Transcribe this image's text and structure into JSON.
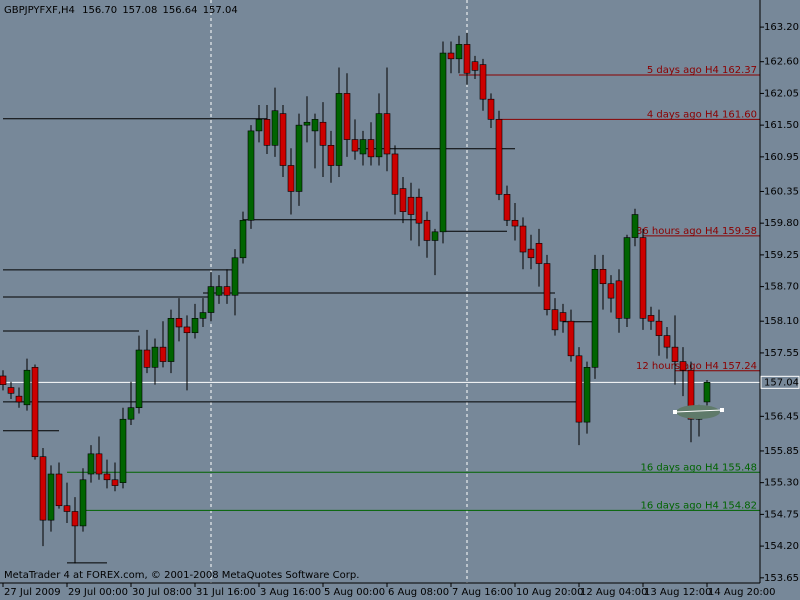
{
  "chart_data": {
    "type": "candlestick",
    "title": "GBPJPYFXF,H4",
    "header_values": [
      "156.70",
      "157.08",
      "156.64",
      "157.04"
    ],
    "footer": "MetaTrader 4 at FOREX.com, © 2001-2008 MetaQuotes Software Corp.",
    "background": "#778899",
    "up_color": "#006400",
    "down_color": "#cc0000",
    "categories": [
      "27 Jul 2009",
      null,
      null,
      null,
      null,
      null,
      null,
      null,
      "29 Jul 00:00",
      null,
      null,
      null,
      null,
      null,
      null,
      null,
      "30 Jul 08:00",
      null,
      null,
      null,
      null,
      null,
      null,
      null,
      "31 Jul 16:00",
      null,
      null,
      null,
      null,
      null,
      null,
      null,
      "3 Aug 16:00",
      null,
      null,
      null,
      null,
      null,
      null,
      null,
      "5 Aug 00:00",
      null,
      null,
      null,
      null,
      null,
      null,
      null,
      "6 Aug 08:00",
      null,
      null,
      null,
      null,
      null,
      null,
      null,
      "7 Aug 16:00",
      null,
      null,
      null,
      null,
      null,
      null,
      null,
      "10 Aug 20:00",
      null,
      null,
      null,
      null,
      null,
      null,
      null,
      "12 Aug 04:00",
      null,
      null,
      null,
      null,
      null,
      null,
      null,
      "13 Aug 12:00",
      null,
      null,
      null,
      null,
      null,
      null,
      null,
      "14 Aug 20:00"
    ],
    "open": [
      157.15,
      156.95,
      156.8,
      156.65,
      157.3,
      155.75,
      154.65,
      155.45,
      154.9,
      154.8,
      154.55,
      155.45,
      155.8,
      155.45,
      155.35,
      155.3,
      156.4,
      156.6,
      157.6,
      157.3,
      157.65,
      157.4,
      158.15,
      158.0,
      157.9,
      158.15,
      158.25,
      158.55,
      158.7,
      158.55,
      159.2,
      159.85,
      161.4,
      161.6,
      161.15,
      161.7,
      160.8,
      160.35,
      161.5,
      161.4,
      161.55,
      161.15,
      160.8,
      162.05,
      161.25,
      161.0,
      161.25,
      160.95,
      161.7,
      161.0,
      160.4,
      160.25,
      160.25,
      159.85,
      159.5,
      159.65,
      162.75,
      162.65,
      162.9,
      162.6,
      162.55,
      161.95,
      161.6,
      160.3,
      159.85,
      159.75,
      159.35,
      159.45,
      159.1,
      158.3,
      158.25,
      158.1,
      157.5,
      156.35,
      157.3,
      159.0,
      158.75,
      158.8,
      158.15,
      159.55,
      159.55,
      158.2,
      158.1,
      157.85,
      157.65,
      157.4,
      157.25,
      156.4,
      156.7
    ],
    "high": [
      157.25,
      157.05,
      156.95,
      157.45,
      157.35,
      155.9,
      155.6,
      155.65,
      155.3,
      155.05,
      155.55,
      155.95,
      156.1,
      155.7,
      155.65,
      156.6,
      157.05,
      157.85,
      157.95,
      157.8,
      158.1,
      158.3,
      158.5,
      158.2,
      158.4,
      158.5,
      158.95,
      158.9,
      159.0,
      159.35,
      160.0,
      161.5,
      161.85,
      161.85,
      162.15,
      161.85,
      161.1,
      161.7,
      162.0,
      161.7,
      161.9,
      161.4,
      162.5,
      162.4,
      161.6,
      161.4,
      161.55,
      162.05,
      162.5,
      161.15,
      160.6,
      160.5,
      160.4,
      160.0,
      159.7,
      162.95,
      162.95,
      163.05,
      163.1,
      162.7,
      162.65,
      162.05,
      161.75,
      160.45,
      160.15,
      159.9,
      159.6,
      159.7,
      159.25,
      158.5,
      158.4,
      158.3,
      157.65,
      157.4,
      159.25,
      159.25,
      158.9,
      159.0,
      159.6,
      160.05,
      159.7,
      158.35,
      158.3,
      158.0,
      158.2,
      157.65,
      157.4,
      156.65,
      157.08
    ],
    "low": [
      156.9,
      156.75,
      156.6,
      156.55,
      155.7,
      154.2,
      154.45,
      154.85,
      154.6,
      153.9,
      154.45,
      155.3,
      155.35,
      155.2,
      155.15,
      155.2,
      156.3,
      156.5,
      157.2,
      157.0,
      157.3,
      157.2,
      157.75,
      156.9,
      157.8,
      158.0,
      158.1,
      158.4,
      158.4,
      158.2,
      159.1,
      159.7,
      161.2,
      161.0,
      160.95,
      160.6,
      159.95,
      160.1,
      161.2,
      160.75,
      160.6,
      160.5,
      160.6,
      160.95,
      160.9,
      160.8,
      160.8,
      160.8,
      160.7,
      159.95,
      159.8,
      159.5,
      159.4,
      159.2,
      158.9,
      159.45,
      162.4,
      162.4,
      162.2,
      162.3,
      161.75,
      161.45,
      160.2,
      159.75,
      159.5,
      159.0,
      159.0,
      158.7,
      158.2,
      157.85,
      157.9,
      157.4,
      155.95,
      156.15,
      157.1,
      158.3,
      158.25,
      157.9,
      158.0,
      159.4,
      157.95,
      157.95,
      157.5,
      157.45,
      157.0,
      156.8,
      156.0,
      156.1,
      156.64
    ],
    "close": [
      157.0,
      156.85,
      156.7,
      157.25,
      155.75,
      154.65,
      155.45,
      154.9,
      154.8,
      154.55,
      155.35,
      155.8,
      155.45,
      155.35,
      155.25,
      156.4,
      156.6,
      157.6,
      157.3,
      157.65,
      157.4,
      158.15,
      158.0,
      157.9,
      158.15,
      158.25,
      158.7,
      158.7,
      158.55,
      159.2,
      159.85,
      161.4,
      161.6,
      161.15,
      161.75,
      160.8,
      160.35,
      161.5,
      161.55,
      161.6,
      161.15,
      160.8,
      162.05,
      161.25,
      161.05,
      161.25,
      160.95,
      161.7,
      161.0,
      160.3,
      160.0,
      159.95,
      159.8,
      159.5,
      159.65,
      162.75,
      162.65,
      162.9,
      162.4,
      162.45,
      161.95,
      161.6,
      160.3,
      159.85,
      159.75,
      159.3,
      159.2,
      159.1,
      158.3,
      157.95,
      158.1,
      157.5,
      156.35,
      157.3,
      159.0,
      158.75,
      158.5,
      158.15,
      159.55,
      159.95,
      158.15,
      158.1,
      157.85,
      157.65,
      157.4,
      157.25,
      156.4,
      156.6,
      157.04
    ],
    "ylim": [
      153.56,
      163.67
    ],
    "yticks": [
      {
        "value": 163.2,
        "label": "163.20"
      },
      {
        "value": 162.6,
        "label": "162.60"
      },
      {
        "value": 162.05,
        "label": "162.05"
      },
      {
        "value": 161.5,
        "label": "161.50"
      },
      {
        "value": 160.95,
        "label": "160.95"
      },
      {
        "value": 160.35,
        "label": "160.35"
      },
      {
        "value": 159.8,
        "label": "159.80"
      },
      {
        "value": 159.25,
        "label": "159.25"
      },
      {
        "value": 158.7,
        "label": "158.70"
      },
      {
        "value": 158.1,
        "label": "158.10"
      },
      {
        "value": 157.55,
        "label": "157.55"
      },
      {
        "value": 156.45,
        "label": "156.45"
      },
      {
        "value": 155.85,
        "label": "155.85"
      },
      {
        "value": 155.3,
        "label": "155.30"
      },
      {
        "value": 154.75,
        "label": "154.75"
      },
      {
        "value": 154.2,
        "label": "154.20"
      },
      {
        "value": 153.65,
        "label": "153.65"
      }
    ],
    "current_price": {
      "value": 157.04,
      "label": "157.04"
    },
    "annotations": [
      {
        "text": "5 days ago H4 162.37",
        "value": 162.37,
        "start": 57,
        "color": "#8b0000"
      },
      {
        "text": "4 days ago H4 161.60",
        "value": 161.6,
        "start": 62,
        "color": "#8b0000"
      },
      {
        "text": "36 hours ago H4 159.58",
        "value": 159.58,
        "start": 80,
        "color": "#8b0000"
      },
      {
        "text": "12 hours ago H4 157.24",
        "value": 157.24,
        "start": 84,
        "color": "#8b0000"
      },
      {
        "text": "16 days ago H4 155.48",
        "value": 155.48,
        "start": 8,
        "color": "#006400"
      },
      {
        "text": "16 days ago H4 154.82",
        "value": 154.82,
        "start": 10,
        "color": "#006400"
      }
    ],
    "levels": [
      {
        "value": 161.61,
        "start": 0,
        "end": 33
      },
      {
        "value": 158.99,
        "start": 0,
        "end": 29
      },
      {
        "value": 158.52,
        "start": 0,
        "end": 26
      },
      {
        "value": 158.59,
        "start": 25,
        "end": 69
      },
      {
        "value": 157.93,
        "start": 0,
        "end": 17
      },
      {
        "value": 156.7,
        "start": 0,
        "end": 72
      },
      {
        "value": 156.2,
        "start": 0,
        "end": 7
      },
      {
        "value": 153.91,
        "start": 8,
        "end": 13
      },
      {
        "value": 161.09,
        "start": 44,
        "end": 64
      },
      {
        "value": 159.86,
        "start": 30,
        "end": 52
      },
      {
        "value": 159.66,
        "start": 55,
        "end": 63
      },
      {
        "value": 158.09,
        "start": 70,
        "end": 74
      }
    ],
    "session_lines": [
      26,
      58
    ]
  }
}
